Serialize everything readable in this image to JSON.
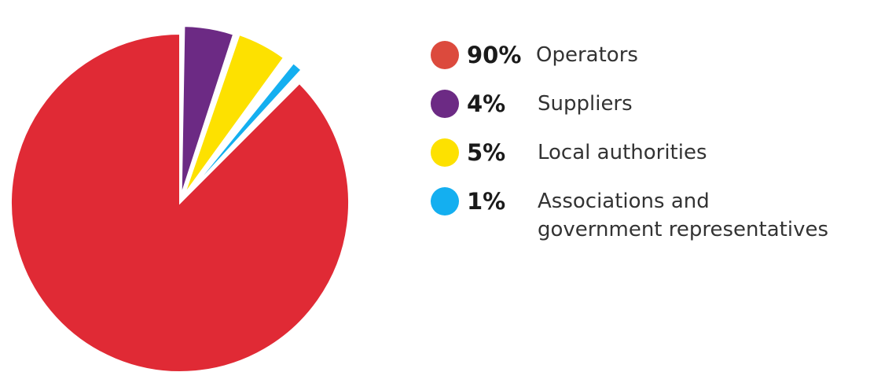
{
  "chart_data": {
    "type": "pie",
    "title": "",
    "exploded": true,
    "slices": [
      {
        "label": "Operators",
        "value": 90,
        "value_label": "90%",
        "color": "#e02a35"
      },
      {
        "label": "Suppliers",
        "value": 4,
        "value_label": "4%",
        "color": "#6c2a84"
      },
      {
        "label": "Local authorities",
        "value": 5,
        "value_label": "5%",
        "color": "#fde100"
      },
      {
        "label": "Associations and government representatives",
        "value": 1,
        "value_label": "1%",
        "color": "#14aff0"
      }
    ],
    "legend_position": "right"
  },
  "legend": {
    "items": [
      {
        "pct": "90%",
        "label": "Operators",
        "color": "#dc4a3d"
      },
      {
        "pct": "4%",
        "label": "Suppliers",
        "color": "#6c2a84"
      },
      {
        "pct": "5%",
        "label": "Local authorities",
        "color": "#fde100"
      },
      {
        "pct": "1%",
        "label_line1": "Associations and",
        "label_line2": "government representatives",
        "color": "#14aff0"
      }
    ]
  }
}
